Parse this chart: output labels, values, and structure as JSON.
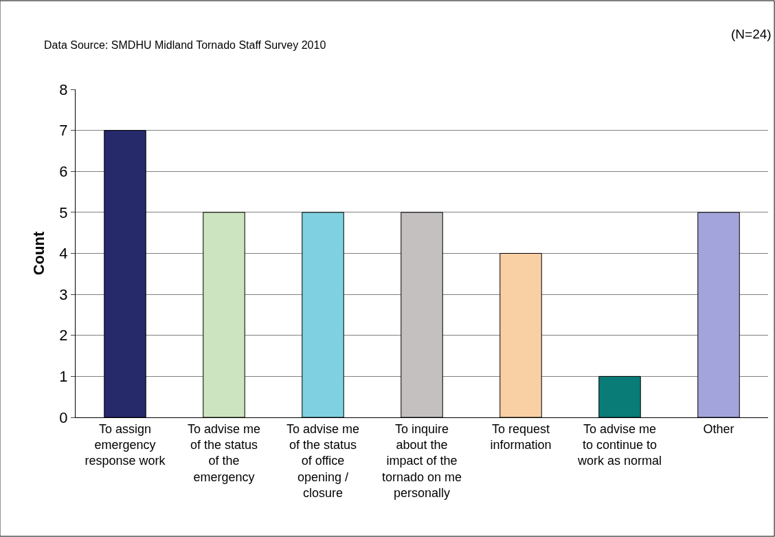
{
  "chart_data": {
    "type": "bar",
    "ylabel": "Count",
    "categories": [
      "To assign emergency response work",
      "To advise me of the status of the emergency",
      "To advise me of the status of office opening / closure",
      "To inquire about the impact of the tornado on me personally",
      "To request information",
      "To advise me to continue to work as normal",
      "Other"
    ],
    "values": [
      7,
      5,
      5,
      5,
      4,
      1,
      5
    ],
    "colors": [
      "#262a6b",
      "#cce5c0",
      "#7fd0e0",
      "#c4c0c0",
      "#f9cfa4",
      "#0a7c78",
      "#a4a4dc"
    ],
    "ylim": [
      0,
      8
    ],
    "yticks": [
      0,
      1,
      2,
      3,
      4,
      5,
      6,
      7,
      8
    ],
    "grid": "y",
    "annotations": [
      "Data Source: SMDHU Midland Tornado Staff Survey 2010",
      "(N=24)"
    ]
  }
}
